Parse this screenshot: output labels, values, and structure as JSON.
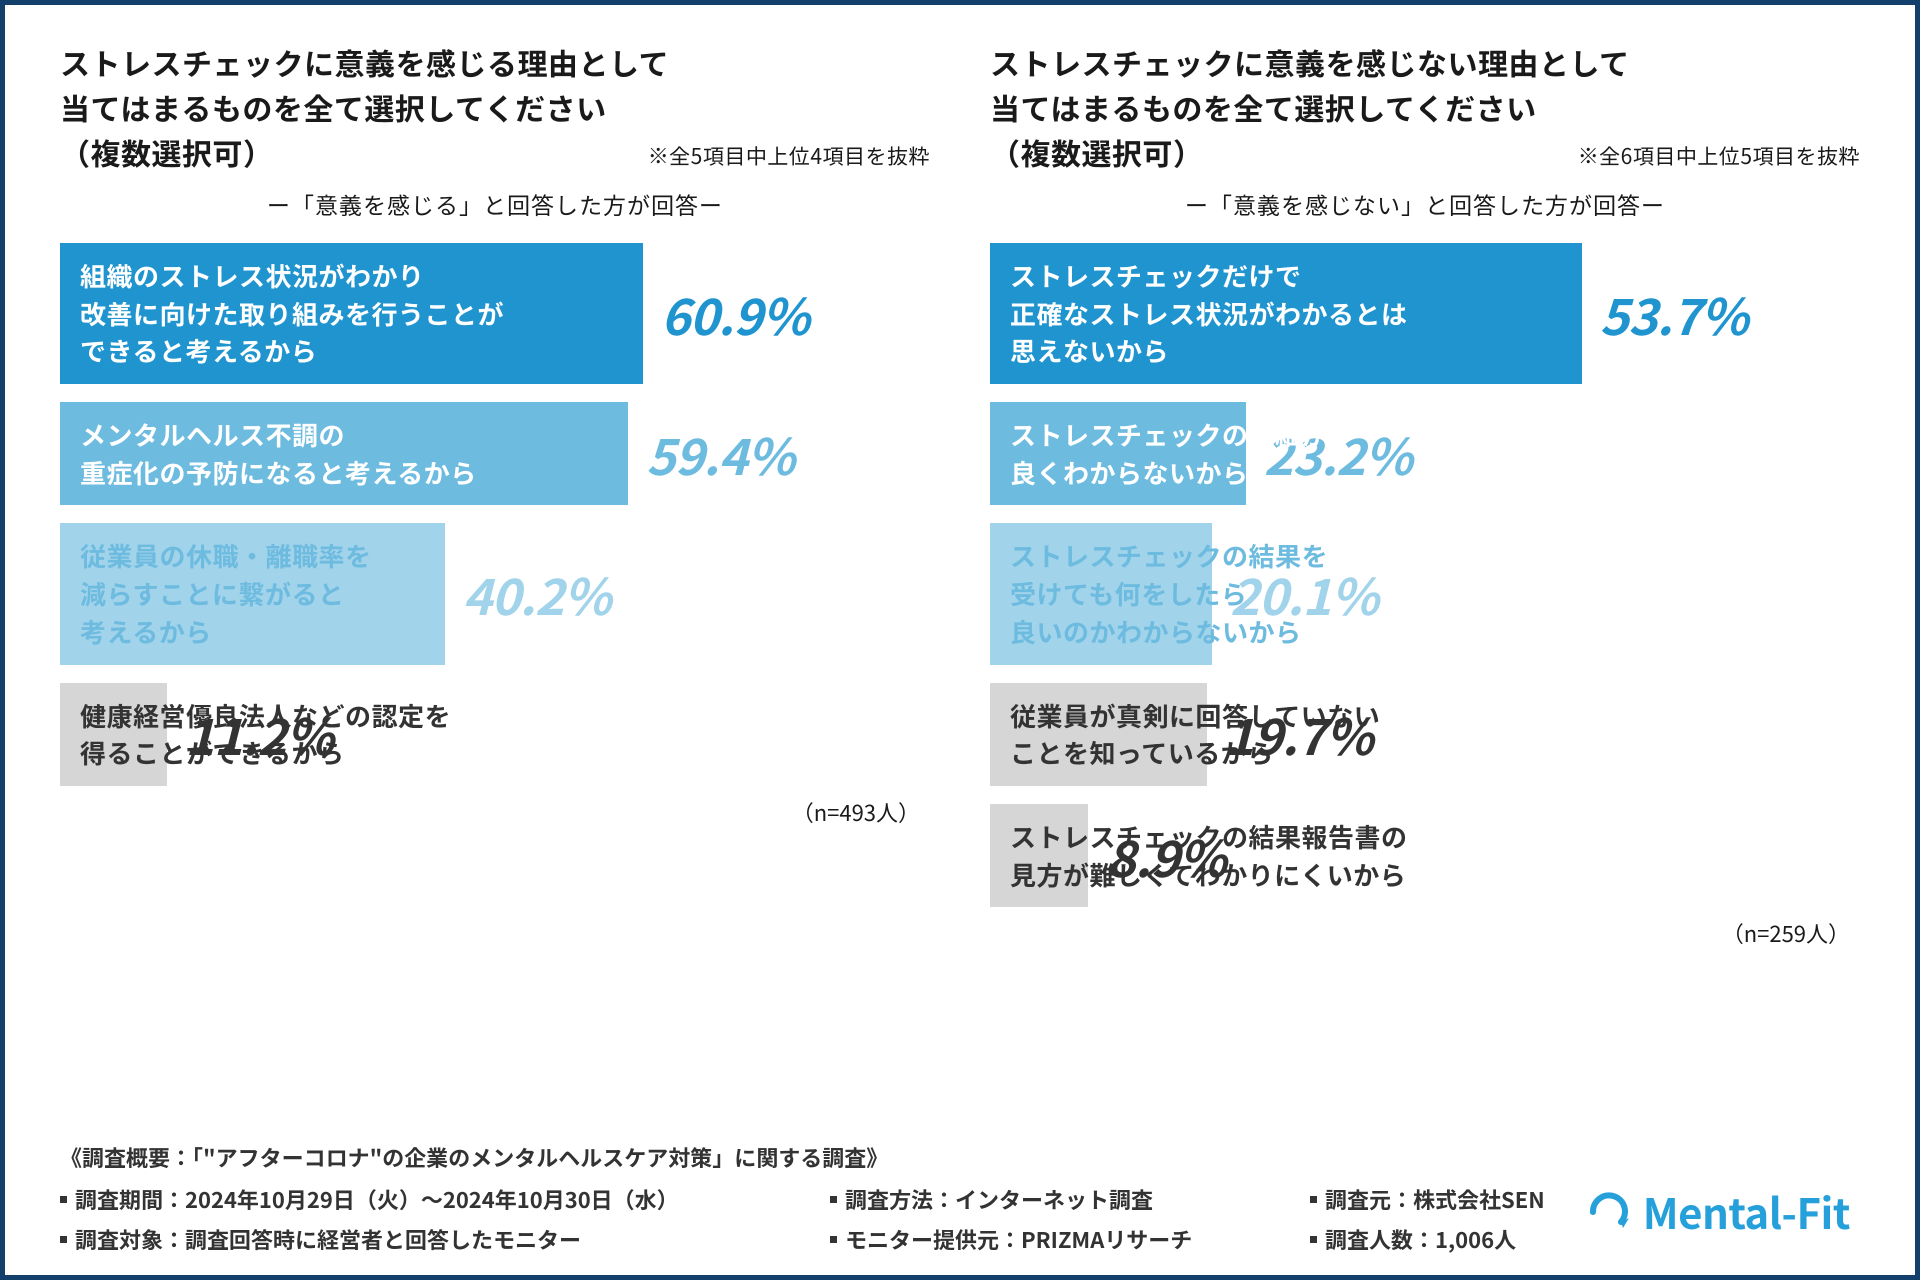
{
  "colors": {
    "border": "#12406b",
    "background": "#ffffff",
    "text_dark": "#1a1a1a",
    "text_white": "#ffffff",
    "logo": "#25a0da"
  },
  "left_chart": {
    "type": "bar",
    "title_line1": "ストレスチェックに意義を感じる理由として",
    "title_line2": "当てはまるものを全て選択してください",
    "title_line3": "（複数選択可）",
    "note": "※全5項目中上位4項目を抜粋",
    "subtitle": "ー「意義を感じる」と回答した方が回答ー",
    "n_label": "（n=493人）",
    "max_value": 60.9,
    "bars": [
      {
        "label": "組織のストレス状況がわかり\n改善に向けた取り組みを行うことが\nできると考えるから",
        "value": 60.9,
        "value_text": "60.9%",
        "bar_color": "#2094cf",
        "text_color": "#ffffff",
        "value_color": "#2094cf",
        "width_pct": 67
      },
      {
        "label": "メンタルヘルス不調の\n重症化の予防になると考えるから",
        "value": 59.4,
        "value_text": "59.4%",
        "bar_color": "#6ebbe0",
        "text_color": "#ffffff",
        "value_color": "#6ebbe0",
        "width_pct": 65.3
      },
      {
        "label": "従業員の休職・離職率を\n減らすことに繋がると\n考えるから",
        "value": 40.2,
        "value_text": "40.2%",
        "bar_color": "#a1d3ea",
        "text_color": "#6ebbe0",
        "value_color": "#a1d3ea",
        "width_pct": 44.2
      },
      {
        "label": "健康経営優良法人などの認定を\n得ることができるから",
        "value": 11.2,
        "value_text": "11.2%",
        "bar_color": "#d6d6d6",
        "text_color": "#333333",
        "value_color": "#333333",
        "width_pct": 12.3,
        "label_overflow": true
      }
    ]
  },
  "right_chart": {
    "type": "bar",
    "title_line1": "ストレスチェックに意義を感じない理由として",
    "title_line2": "当てはまるものを全て選択してください",
    "title_line3": "（複数選択可）",
    "note": "※全6項目中上位5項目を抜粋",
    "subtitle": "ー「意義を感じない」と回答した方が回答ー",
    "n_label": "（n=259人）",
    "max_value": 53.7,
    "bars": [
      {
        "label": "ストレスチェックだけで\n正確なストレス状況がわかるとは\n思えないから",
        "value": 53.7,
        "value_text": "53.7%",
        "bar_color": "#2094cf",
        "text_color": "#ffffff",
        "value_color": "#2094cf",
        "width_pct": 68
      },
      {
        "label": "ストレスチェックの詳細が\n良くわからないから",
        "value": 23.2,
        "value_text": "23.2%",
        "bar_color": "#6ebbe0",
        "text_color": "#ffffff",
        "value_color": "#6ebbe0",
        "width_pct": 29.4,
        "label_overflow": true
      },
      {
        "label": "ストレスチェックの結果を\n受けても何をしたら\n良いのかわからないから",
        "value": 20.1,
        "value_text": "20.1%",
        "bar_color": "#a1d3ea",
        "text_color": "#6ebbe0",
        "value_color": "#a1d3ea",
        "width_pct": 25.5,
        "label_overflow": true
      },
      {
        "label": "従業員が真剣に回答していない\nことを知っているから",
        "value": 19.7,
        "value_text": "19.7%",
        "bar_color": "#d6d6d6",
        "text_color": "#333333",
        "value_color": "#333333",
        "width_pct": 24.9,
        "label_overflow": true
      },
      {
        "label": "ストレスチェックの結果報告書の\n見方が難しくてわかりにくいから",
        "value": 8.9,
        "value_text": "8.9%",
        "bar_color": "#d6d6d6",
        "text_color": "#333333",
        "value_color": "#333333",
        "width_pct": 11.3,
        "label_overflow": true
      }
    ]
  },
  "footer": {
    "title": "《調査概要：「\"アフターコロナ\"の企業のメンタルヘルスケア対策」に関する調査》",
    "rows": [
      [
        "調査期間：2024年10月29日（火）～2024年10月30日（水）",
        "調査方法：インターネット調査",
        "調査元：株式会社SEN"
      ],
      [
        "調査対象：調査回答時に経営者と回答したモニター",
        "モニター提供元：PRIZMAリサーチ",
        "調査人数：1,006人"
      ]
    ],
    "col_widths": [
      "720px",
      "430px",
      "auto"
    ]
  },
  "logo": {
    "text": "Mental-Fit",
    "icon_color": "#25a0da"
  }
}
